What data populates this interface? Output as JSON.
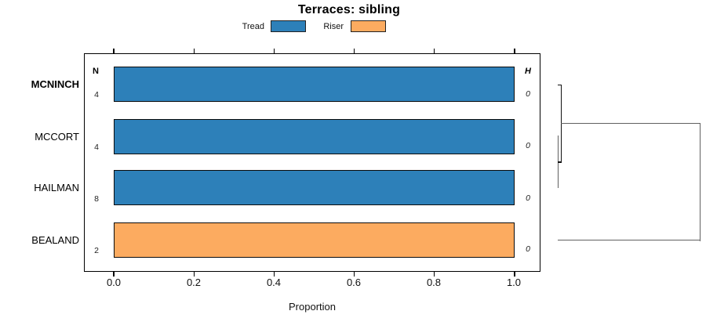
{
  "title": "Terraces: sibling",
  "legend": [
    {
      "label": "Tread",
      "color": "#2d80b9"
    },
    {
      "label": "Riser",
      "color": "#fcab60"
    }
  ],
  "columns": {
    "n_header": "N",
    "h_header": "H"
  },
  "rows": [
    {
      "label": "MCNINCH",
      "weight": "bold",
      "n": "4",
      "h": "0",
      "value": 1.0,
      "color": "#2d80b9"
    },
    {
      "label": "MCCORT",
      "weight": "normal",
      "n": "4",
      "h": "0",
      "value": 1.0,
      "color": "#2d80b9"
    },
    {
      "label": "HAILMAN",
      "weight": "normal",
      "n": "8",
      "h": "0",
      "value": 1.0,
      "color": "#2d80b9"
    },
    {
      "label": "BEALAND",
      "weight": "normal",
      "n": "2",
      "h": "0",
      "value": 1.0,
      "color": "#fcab60"
    }
  ],
  "x_axis": {
    "label": "Proportion",
    "ticks": [
      "0.0",
      "0.2",
      "0.4",
      "0.6",
      "0.8",
      "1.0"
    ]
  },
  "chart_data": {
    "type": "bar",
    "orientation": "horizontal",
    "title": "Terraces: sibling",
    "categories": [
      "MCNINCH",
      "MCCORT",
      "HAILMAN",
      "BEALAND"
    ],
    "series": [
      {
        "name": "Tread",
        "color": "#2d80b9",
        "values": [
          1.0,
          1.0,
          1.0,
          0.0
        ]
      },
      {
        "name": "Riser",
        "color": "#fcab60",
        "values": [
          0.0,
          0.0,
          0.0,
          1.0
        ]
      }
    ],
    "annotations": {
      "N": [
        4,
        4,
        8,
        2
      ],
      "H": [
        0,
        0,
        0,
        0
      ]
    },
    "xlabel": "Proportion",
    "xlim": [
      0,
      1
    ],
    "xticks": [
      0.0,
      0.2,
      0.4,
      0.6,
      0.8,
      1.0
    ],
    "grid": false,
    "legend_position": "top-center",
    "bar_borders": "black",
    "dendrogram": {
      "side": "right",
      "merges": [
        {
          "join": [
            "MCCORT",
            "HAILMAN"
          ],
          "height_label": "0"
        },
        {
          "join": [
            [
              "MCCORT",
              "HAILMAN"
            ],
            "MCNINCH"
          ],
          "height_label": "0"
        },
        {
          "join": [
            [
              "MCNINCH",
              "MCCORT",
              "HAILMAN"
            ],
            "BEALAND"
          ],
          "height_label": "large"
        }
      ]
    }
  }
}
